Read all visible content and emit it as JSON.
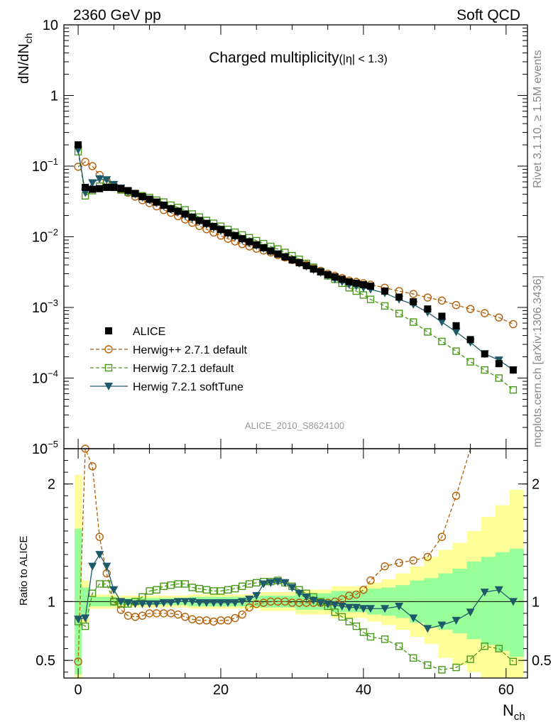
{
  "header": {
    "left": "2360 GeV pp",
    "right": "Soft QCD"
  },
  "side_labels": {
    "rivet": "Rivet 3.1.10, ≥ 1.5M events",
    "mcplots": "mcplots.cern.ch [arXiv:1306.3436]"
  },
  "chart_data": {
    "type": "line",
    "title_main": "Charged multiplicity",
    "title_cut": "(|η| < 1.3)",
    "analysis_id": "ALICE_2010_S8624100",
    "xlabel": "N",
    "xlabel_sub": "ch",
    "ylabel": "dN/dN",
    "ylabel_sub": "ch",
    "ratio_ylabel": "Ratio to ALICE",
    "xlim": [
      -2,
      63
    ],
    "ylim": [
      1e-05,
      10
    ],
    "yscale": "log",
    "ratio_ylim": [
      0.35,
      2.3
    ],
    "x_ticks": [
      0,
      20,
      40,
      60
    ],
    "y_ticks": [
      {
        "value": 10,
        "base": "10",
        "exp": ""
      },
      {
        "value": 1,
        "base": "1",
        "exp": ""
      },
      {
        "value": 0.1,
        "base": "10",
        "exp": "−1"
      },
      {
        "value": 0.01,
        "base": "10",
        "exp": "−2"
      },
      {
        "value": 0.001,
        "base": "10",
        "exp": "−3"
      },
      {
        "value": 0.0001,
        "base": "10",
        "exp": "−4"
      },
      {
        "value": 1e-05,
        "base": "10",
        "exp": "−5"
      }
    ],
    "ratio_ticks": [
      {
        "value": 0.5,
        "label": "0.5"
      },
      {
        "value": 1,
        "label": "1"
      },
      {
        "value": 2,
        "label": "2"
      }
    ],
    "legend_position": "bottom-left",
    "series": [
      {
        "name": "ALICE",
        "color": "#000000",
        "marker": "filled-square",
        "line": "none",
        "x": [
          0,
          1,
          2,
          3,
          4,
          5,
          6,
          7,
          8,
          9,
          10,
          11,
          12,
          13,
          14,
          15,
          16,
          17,
          18,
          19,
          20,
          21,
          22,
          23,
          24,
          25,
          26,
          27,
          28,
          29,
          30,
          31,
          32,
          33,
          34,
          35,
          36,
          37,
          38,
          39,
          40,
          41,
          43,
          45,
          47,
          49,
          51,
          53,
          55,
          57,
          59,
          61
        ],
        "y": [
          0.2,
          0.05,
          0.047,
          0.048,
          0.05,
          0.05,
          0.048,
          0.045,
          0.041,
          0.037,
          0.034,
          0.031,
          0.028,
          0.025,
          0.023,
          0.021,
          0.019,
          0.017,
          0.0155,
          0.014,
          0.0127,
          0.0114,
          0.0104,
          0.0094,
          0.0085,
          0.0077,
          0.007,
          0.0063,
          0.0057,
          0.0052,
          0.0047,
          0.0043,
          0.0039,
          0.0035,
          0.0032,
          0.0029,
          0.0027,
          0.0025,
          0.0023,
          0.0022,
          0.0021,
          0.002,
          0.0017,
          0.0014,
          0.0012,
          0.00095,
          0.00075,
          0.00055,
          0.00035,
          0.00022,
          0.00016,
          0.00013
        ]
      },
      {
        "name": "Herwig++ 2.7.1 default",
        "color": "#b45f06",
        "marker": "open-circle",
        "line": "dashed",
        "x": [
          0,
          1,
          2,
          3,
          4,
          5,
          6,
          7,
          8,
          9,
          10,
          11,
          12,
          13,
          14,
          15,
          16,
          17,
          18,
          19,
          20,
          21,
          22,
          23,
          24,
          25,
          26,
          27,
          28,
          29,
          30,
          31,
          32,
          33,
          34,
          35,
          36,
          37,
          38,
          39,
          40,
          41,
          43,
          45,
          47,
          49,
          51,
          53,
          55,
          57,
          59,
          61
        ],
        "y": [
          0.098,
          0.115,
          0.1,
          0.075,
          0.062,
          0.053,
          0.047,
          0.042,
          0.037,
          0.033,
          0.03,
          0.027,
          0.024,
          0.0219,
          0.0196,
          0.0176,
          0.0158,
          0.0142,
          0.0128,
          0.0115,
          0.0104,
          0.0094,
          0.0086,
          0.0079,
          0.0073,
          0.0068,
          0.0064,
          0.006,
          0.0055,
          0.0051,
          0.0047,
          0.0043,
          0.004,
          0.0036,
          0.0033,
          0.003,
          0.0028,
          0.0026,
          0.0024,
          0.0023,
          0.0022,
          0.0021,
          0.0019,
          0.0017,
          0.00155,
          0.00138,
          0.00125,
          0.00108,
          0.00095,
          0.00083,
          0.00072,
          0.00058
        ]
      },
      {
        "name": "Herwig 7.2.1 default",
        "color": "#4a9a1a",
        "marker": "open-square",
        "line": "dashed",
        "x": [
          0,
          1,
          2,
          3,
          4,
          5,
          6,
          7,
          8,
          9,
          10,
          11,
          12,
          13,
          14,
          15,
          16,
          17,
          18,
          19,
          20,
          21,
          22,
          23,
          24,
          25,
          26,
          27,
          28,
          29,
          30,
          31,
          32,
          33,
          34,
          35,
          36,
          37,
          38,
          39,
          40,
          41,
          43,
          45,
          47,
          49,
          51,
          53,
          55,
          57,
          59,
          61
        ],
        "y": [
          0.16,
          0.038,
          0.045,
          0.052,
          0.056,
          0.05,
          0.046,
          0.043,
          0.041,
          0.038,
          0.036,
          0.033,
          0.031,
          0.028,
          0.026,
          0.024,
          0.021,
          0.019,
          0.017,
          0.0155,
          0.0141,
          0.0127,
          0.0116,
          0.0106,
          0.0097,
          0.0088,
          0.008,
          0.0073,
          0.0067,
          0.006,
          0.0054,
          0.0048,
          0.0042,
          0.0037,
          0.0032,
          0.0028,
          0.0025,
          0.0022,
          0.0019,
          0.0017,
          0.0015,
          0.0013,
          0.00105,
          0.00082,
          0.00062,
          0.00045,
          0.00033,
          0.00024,
          0.00017,
          0.00013,
          0.0001,
          6.8e-05
        ]
      },
      {
        "name": "Herwig 7.2.1 softTune",
        "color": "#1f5a6b",
        "marker": "filled-triangle-down",
        "line": "solid",
        "x": [
          0,
          1,
          2,
          3,
          4,
          5,
          6,
          7,
          8,
          9,
          10,
          11,
          12,
          13,
          14,
          15,
          16,
          17,
          18,
          19,
          20,
          21,
          22,
          23,
          24,
          25,
          26,
          27,
          28,
          29,
          30,
          31,
          32,
          33,
          34,
          35,
          36,
          37,
          38,
          39,
          40,
          41,
          43,
          45,
          47,
          49,
          51,
          53,
          55,
          57,
          59,
          61
        ],
        "y": [
          0.17,
          0.042,
          0.058,
          0.066,
          0.064,
          0.055,
          0.049,
          0.044,
          0.04,
          0.036,
          0.033,
          0.03,
          0.027,
          0.0245,
          0.0222,
          0.0201,
          0.0182,
          0.0164,
          0.0149,
          0.0134,
          0.0121,
          0.0109,
          0.0099,
          0.009,
          0.0082,
          0.0075,
          0.0068,
          0.0062,
          0.0057,
          0.0052,
          0.0047,
          0.0042,
          0.0038,
          0.0034,
          0.0031,
          0.0028,
          0.0025,
          0.0023,
          0.0021,
          0.002,
          0.0019,
          0.0018,
          0.0016,
          0.0013,
          0.0011,
          0.00085,
          0.00062,
          0.00045,
          0.00032,
          0.00022,
          0.00018,
          0.00013
        ]
      }
    ],
    "ratio_series": [
      {
        "name": "Herwig++ 2.7.1 default",
        "x": [
          0,
          1,
          2,
          3,
          4,
          5,
          6,
          7,
          8,
          9,
          10,
          11,
          12,
          13,
          14,
          15,
          16,
          17,
          18,
          19,
          20,
          21,
          22,
          23,
          24,
          25,
          26,
          27,
          28,
          29,
          30,
          31,
          32,
          33,
          34,
          35,
          36,
          37,
          38,
          39,
          40,
          41,
          43,
          45,
          47,
          49,
          51,
          53,
          55
        ],
        "y": [
          0.49,
          2.3,
          2.15,
          1.55,
          1.24,
          1.0,
          0.93,
          0.88,
          0.87,
          0.88,
          0.9,
          0.9,
          0.9,
          0.9,
          0.89,
          0.87,
          0.85,
          0.84,
          0.84,
          0.83,
          0.84,
          0.84,
          0.86,
          0.89,
          0.95,
          0.98,
          0.99,
          1.0,
          1.0,
          1.0,
          0.99,
          0.99,
          0.99,
          0.99,
          0.99,
          0.99,
          1.0,
          1.02,
          1.05,
          1.06,
          1.1,
          1.18,
          1.3,
          1.33,
          1.35,
          1.38,
          1.55,
          1.9,
          2.35
        ]
      },
      {
        "name": "Herwig 7.2.1 default",
        "x": [
          0,
          1,
          2,
          3,
          4,
          5,
          6,
          7,
          8,
          9,
          10,
          11,
          12,
          13,
          14,
          15,
          16,
          17,
          18,
          19,
          20,
          21,
          22,
          23,
          24,
          25,
          26,
          27,
          28,
          29,
          30,
          31,
          32,
          33,
          34,
          35,
          36,
          37,
          38,
          39,
          40,
          41,
          43,
          45,
          47,
          49,
          51,
          53,
          55,
          57,
          59,
          61
        ],
        "y": [
          0.83,
          0.79,
          1.07,
          1.15,
          1.15,
          1.0,
          0.98,
          0.98,
          1.0,
          1.04,
          1.09,
          1.1,
          1.13,
          1.14,
          1.15,
          1.15,
          1.12,
          1.11,
          1.1,
          1.09,
          1.09,
          1.1,
          1.11,
          1.13,
          1.15,
          1.16,
          1.17,
          1.17,
          1.18,
          1.16,
          1.13,
          1.1,
          1.07,
          1.04,
          1.0,
          0.96,
          0.91,
          0.87,
          0.83,
          0.79,
          0.74,
          0.7,
          0.68,
          0.62,
          0.52,
          0.46,
          0.42,
          0.44,
          0.51,
          0.62,
          0.6,
          0.49
        ]
      },
      {
        "name": "Herwig 7.2.1 softTune",
        "x": [
          0,
          1,
          2,
          3,
          4,
          5,
          6,
          7,
          8,
          9,
          10,
          11,
          12,
          13,
          14,
          15,
          16,
          17,
          18,
          19,
          20,
          21,
          22,
          23,
          24,
          25,
          26,
          27,
          28,
          29,
          30,
          31,
          32,
          33,
          34,
          35,
          36,
          37,
          38,
          39,
          40,
          41,
          43,
          45,
          47,
          49,
          51,
          53,
          55,
          57,
          59,
          61
        ],
        "y": [
          0.85,
          0.86,
          1.3,
          1.4,
          1.3,
          1.1,
          1.0,
          0.99,
          0.98,
          0.98,
          0.98,
          0.98,
          0.99,
          0.99,
          1.0,
          1.0,
          1.0,
          0.99,
          0.99,
          0.99,
          0.99,
          0.99,
          0.99,
          1.0,
          1.02,
          1.05,
          1.15,
          1.16,
          1.17,
          1.16,
          1.12,
          1.07,
          1.04,
          1.01,
          0.99,
          0.98,
          0.97,
          0.96,
          0.95,
          0.95,
          0.94,
          0.94,
          0.94,
          0.96,
          0.86,
          0.77,
          0.8,
          0.84,
          0.91,
          1.08,
          1.1,
          1.0
        ]
      }
    ],
    "ratio_bands": [
      {
        "x0": -0.5,
        "x1": 0.5,
        "green_lo": 0.38,
        "green_hi": 1.62,
        "yellow_lo": 0.35,
        "yellow_hi": 2.08
      },
      {
        "x0": 0.5,
        "x1": 1.5,
        "green_lo": 0.88,
        "green_hi": 1.12,
        "yellow_lo": 0.82,
        "yellow_hi": 1.18
      },
      {
        "x0": 1.5,
        "x1": 5.5,
        "green_lo": 0.96,
        "green_hi": 1.04,
        "yellow_lo": 0.94,
        "yellow_hi": 1.06
      },
      {
        "x0": 5.5,
        "x1": 15.5,
        "green_lo": 0.97,
        "green_hi": 1.03,
        "yellow_lo": 0.95,
        "yellow_hi": 1.05
      },
      {
        "x0": 15.5,
        "x1": 25.5,
        "green_lo": 0.96,
        "green_hi": 1.04,
        "yellow_lo": 0.94,
        "yellow_hi": 1.06
      },
      {
        "x0": 25.5,
        "x1": 30.5,
        "green_lo": 0.95,
        "green_hi": 1.05,
        "yellow_lo": 0.92,
        "yellow_hi": 1.08
      },
      {
        "x0": 30.5,
        "x1": 35.5,
        "green_lo": 0.93,
        "green_hi": 1.07,
        "yellow_lo": 0.89,
        "yellow_hi": 1.1
      },
      {
        "x0": 35.5,
        "x1": 40.5,
        "green_lo": 0.91,
        "green_hi": 1.09,
        "yellow_lo": 0.86,
        "yellow_hi": 1.13
      },
      {
        "x0": 40.5,
        "x1": 42.5,
        "green_lo": 0.89,
        "green_hi": 1.11,
        "yellow_lo": 0.83,
        "yellow_hi": 1.16
      },
      {
        "x0": 42.5,
        "x1": 44.5,
        "green_lo": 0.88,
        "green_hi": 1.12,
        "yellow_lo": 0.8,
        "yellow_hi": 1.19
      },
      {
        "x0": 44.5,
        "x1": 46.5,
        "green_lo": 0.86,
        "green_hi": 1.14,
        "yellow_lo": 0.76,
        "yellow_hi": 1.24
      },
      {
        "x0": 46.5,
        "x1": 48.5,
        "green_lo": 0.82,
        "green_hi": 1.18,
        "yellow_lo": 0.7,
        "yellow_hi": 1.3
      },
      {
        "x0": 48.5,
        "x1": 50.5,
        "green_lo": 0.78,
        "green_hi": 1.2,
        "yellow_lo": 0.64,
        "yellow_hi": 1.38
      },
      {
        "x0": 50.5,
        "x1": 52.5,
        "green_lo": 0.76,
        "green_hi": 1.24,
        "yellow_lo": 0.52,
        "yellow_hi": 1.44
      },
      {
        "x0": 52.5,
        "x1": 54.5,
        "green_lo": 0.73,
        "green_hi": 1.28,
        "yellow_lo": 0.46,
        "yellow_hi": 1.5
      },
      {
        "x0": 54.5,
        "x1": 56.5,
        "green_lo": 0.68,
        "green_hi": 1.34,
        "yellow_lo": 0.4,
        "yellow_hi": 1.6
      },
      {
        "x0": 56.5,
        "x1": 58.5,
        "green_lo": 0.63,
        "green_hi": 1.38,
        "yellow_lo": 0.35,
        "yellow_hi": 1.72
      },
      {
        "x0": 58.5,
        "x1": 60.5,
        "green_lo": 0.58,
        "green_hi": 1.42,
        "yellow_lo": 0.35,
        "yellow_hi": 1.82
      },
      {
        "x0": 60.5,
        "x1": 62.5,
        "green_lo": 0.53,
        "green_hi": 1.45,
        "yellow_lo": 0.35,
        "yellow_hi": 1.95
      }
    ]
  }
}
